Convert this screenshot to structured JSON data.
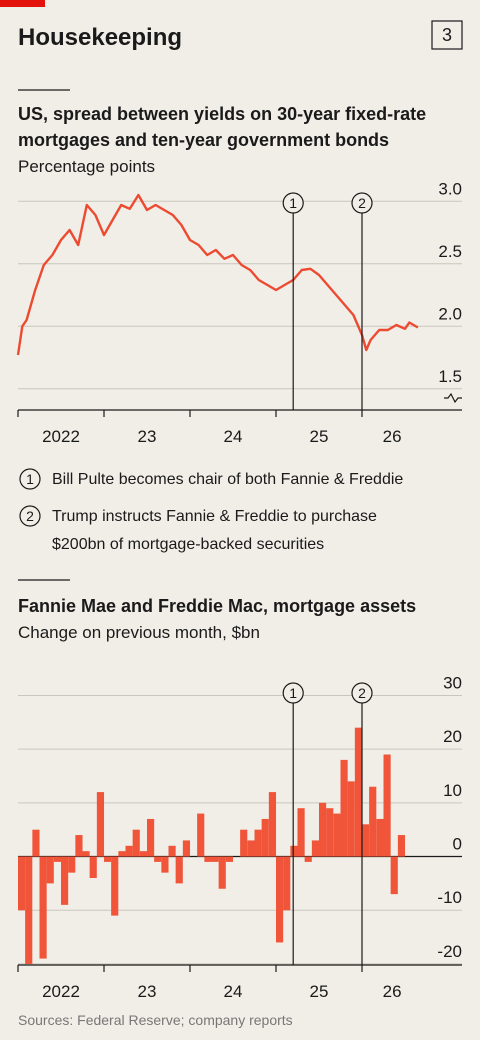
{
  "header": {
    "title": "Housekeeping",
    "badge": "3"
  },
  "chart_data": [
    {
      "type": "line",
      "title": [
        "US, spread between yields on 30-year fixed-rate",
        "mortgages and ten-year government bonds"
      ],
      "subtitle": "Percentage points",
      "color": "#ec4a31",
      "x": [
        2022.0,
        2022.05,
        2022.1,
        2022.2,
        2022.3,
        2022.4,
        2022.5,
        2022.6,
        2022.7,
        2022.8,
        2022.9,
        2023.0,
        2023.1,
        2023.2,
        2023.3,
        2023.4,
        2023.5,
        2023.6,
        2023.7,
        2023.8,
        2023.9,
        2024.0,
        2024.1,
        2024.2,
        2024.3,
        2024.4,
        2024.5,
        2024.6,
        2024.7,
        2024.8,
        2024.9,
        2025.0,
        2025.1,
        2025.2,
        2025.3,
        2025.4,
        2025.5,
        2025.6,
        2025.7,
        2025.8,
        2025.9,
        2026.0,
        2026.05,
        2026.1,
        2026.2,
        2026.3,
        2026.4,
        2026.5,
        2026.55,
        2026.65
      ],
      "values": [
        1.77,
        2.0,
        2.05,
        2.29,
        2.49,
        2.57,
        2.69,
        2.77,
        2.65,
        2.97,
        2.89,
        2.73,
        2.85,
        2.97,
        2.94,
        3.05,
        2.93,
        2.97,
        2.93,
        2.89,
        2.81,
        2.69,
        2.65,
        2.57,
        2.61,
        2.54,
        2.57,
        2.49,
        2.45,
        2.37,
        2.33,
        2.29,
        2.33,
        2.37,
        2.45,
        2.46,
        2.41,
        2.33,
        2.25,
        2.17,
        2.09,
        1.93,
        1.81,
        1.89,
        1.97,
        1.97,
        2.01,
        1.98,
        2.03,
        1.99
      ],
      "xlim": [
        2022,
        2026.7
      ],
      "xticks": [
        {
          "value": 2022,
          "label": "2022"
        },
        {
          "value": 2023,
          "label": "23"
        },
        {
          "value": 2024,
          "label": "24"
        },
        {
          "value": 2025,
          "label": "25"
        },
        {
          "value": 2026,
          "label": "26"
        }
      ],
      "ylim": [
        1.33,
        3.15
      ],
      "yticks": [
        1.5,
        {
          "value": 2,
          "label": "2.0"
        },
        2.5,
        {
          "value": 3,
          "label": "3.0"
        }
      ],
      "grid": true,
      "axis_break": true,
      "events": [
        {
          "label": "1",
          "x": 2025.2,
          "text": [
            "Bill Pulte becomes chair of both Fannie & Freddie"
          ]
        },
        {
          "label": "2",
          "x": 2026.0,
          "text": [
            "Trump instructs Fannie & Freddie to purchase",
            "$200bn of mortgage-backed securities"
          ]
        }
      ]
    },
    {
      "type": "bar",
      "title": [
        "Fannie Mae and Freddie Mac, mortgage assets"
      ],
      "subtitle": "Change on previous month, $bn",
      "color": "#f0553a",
      "x": [
        2022,
        2022.083,
        2022.167,
        2022.25,
        2022.333,
        2022.417,
        2022.5,
        2022.583,
        2022.667,
        2022.75,
        2022.833,
        2022.917,
        2023,
        2023.083,
        2023.167,
        2023.25,
        2023.333,
        2023.417,
        2023.5,
        2023.583,
        2023.667,
        2023.75,
        2023.833,
        2023.917,
        2024,
        2024.083,
        2024.167,
        2024.25,
        2024.333,
        2024.417,
        2024.5,
        2024.583,
        2024.667,
        2024.75,
        2024.833,
        2024.917,
        2025,
        2025.083,
        2025.167,
        2025.25,
        2025.333,
        2025.417,
        2025.5,
        2025.583,
        2025.667,
        2025.75,
        2025.833,
        2025.917,
        2026,
        2026.083,
        2026.167,
        2026.25,
        2026.333,
        2026.417
      ],
      "values": [
        -10,
        -20,
        5,
        -19,
        -5,
        -1,
        -9,
        -3,
        4,
        1,
        -4,
        12,
        -1,
        -11,
        1,
        2,
        5,
        1,
        7,
        -1,
        -3,
        2,
        -5,
        3,
        0,
        8,
        -1,
        -1,
        -6,
        -1,
        0,
        5,
        3,
        5,
        7,
        12,
        -16,
        -10,
        2,
        9,
        -1,
        3,
        10,
        9,
        8,
        18,
        14,
        24,
        6,
        13,
        7,
        19,
        -7,
        4
      ],
      "xlim": [
        2022,
        2026.7
      ],
      "xticks": [
        {
          "value": 2022,
          "label": "2022"
        },
        {
          "value": 2023,
          "label": "23"
        },
        {
          "value": 2024,
          "label": "24"
        },
        {
          "value": 2025,
          "label": "25"
        },
        {
          "value": 2026,
          "label": "26"
        }
      ],
      "ylim": [
        -20.2,
        32
      ],
      "yticks": [
        -20,
        -10,
        0,
        10,
        20,
        30
      ],
      "grid": true,
      "events": [
        {
          "label": "1",
          "x": 2025.2
        },
        {
          "label": "2",
          "x": 2026.0
        }
      ]
    }
  ],
  "source": "Sources: Federal Reserve; company reports"
}
